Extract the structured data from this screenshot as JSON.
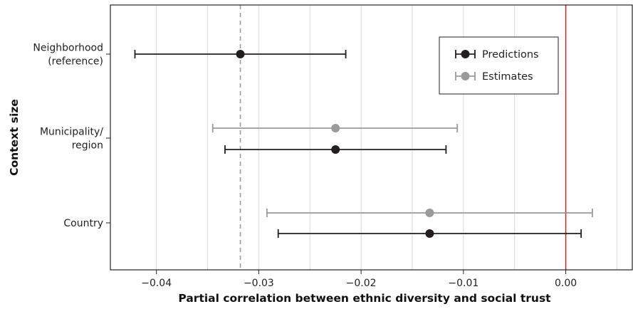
{
  "chart_data": {
    "type": "forest",
    "xlabel": "Partial correlation between ethnic diversity and social trust",
    "ylabel": "Context size",
    "xlim": [
      -0.0445,
      0.0065
    ],
    "x_ticks": [
      -0.04,
      -0.03,
      -0.02,
      -0.01,
      0.0
    ],
    "x_tick_labels": [
      "−0.04",
      "−0.03",
      "−0.02",
      "−0.01",
      "0.00"
    ],
    "categories": [
      {
        "label_lines": [
          "Neighborhood",
          "(reference)"
        ]
      },
      {
        "label_lines": [
          "Municipality/",
          "region"
        ]
      },
      {
        "label_lines": [
          "Country"
        ]
      }
    ],
    "series": [
      {
        "name": "Predictions",
        "color": "#231f20",
        "points": [
          {
            "category": 0,
            "estimate": -0.0318,
            "lower": -0.0421,
            "upper": -0.0215
          },
          {
            "category": 1,
            "estimate": -0.0225,
            "lower": -0.0333,
            "upper": -0.0117
          },
          {
            "category": 2,
            "estimate": -0.0133,
            "lower": -0.0281,
            "upper": 0.0015
          }
        ]
      },
      {
        "name": "Estimates",
        "color": "#9a9a9a",
        "points": [
          {
            "category": 1,
            "estimate": -0.0225,
            "lower": -0.0345,
            "upper": -0.0106
          },
          {
            "category": 2,
            "estimate": -0.0133,
            "lower": -0.0292,
            "upper": 0.0026
          }
        ]
      }
    ],
    "reference_lines": [
      {
        "x": 0.0,
        "style": "solid",
        "color": "#c0272d"
      },
      {
        "x": -0.0318,
        "style": "dashed",
        "color": "#9a9a9a"
      }
    ],
    "grid": {
      "vertical": true,
      "horizontal": false
    },
    "legend_position": "top-right"
  }
}
